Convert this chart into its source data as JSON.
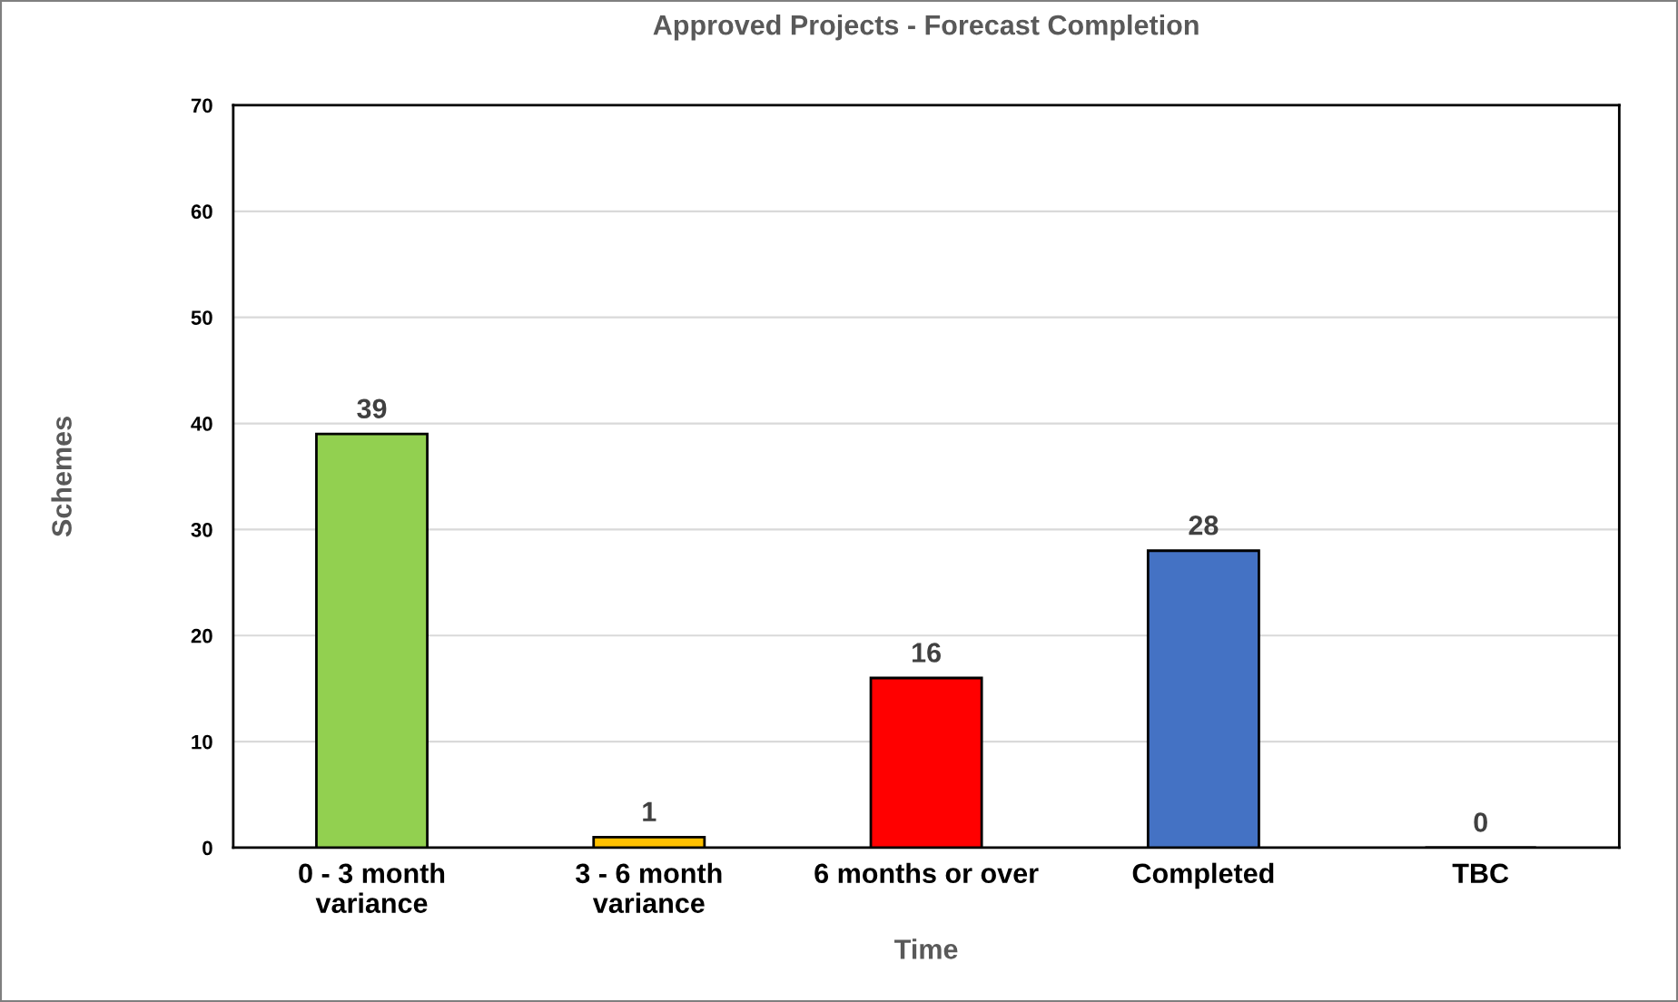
{
  "chart_data": {
    "type": "bar",
    "title": "Approved Projects - Forecast Completion",
    "xlabel": "Time",
    "ylabel": "Schemes",
    "categories": [
      "0 - 3 month\nvariance",
      "3 - 6 month\nvariance",
      "6 months or over",
      "Completed",
      "TBC"
    ],
    "values": [
      39,
      1,
      16,
      28,
      0
    ],
    "colors": [
      "#92d050",
      "#ffc000",
      "#ff0000",
      "#4472c4",
      "#a5a5a5"
    ],
    "ylim": [
      0,
      70
    ],
    "yticks": [
      0,
      10,
      20,
      30,
      40,
      50,
      60,
      70
    ],
    "grid": "y",
    "data_labels": true,
    "legend": false
  }
}
